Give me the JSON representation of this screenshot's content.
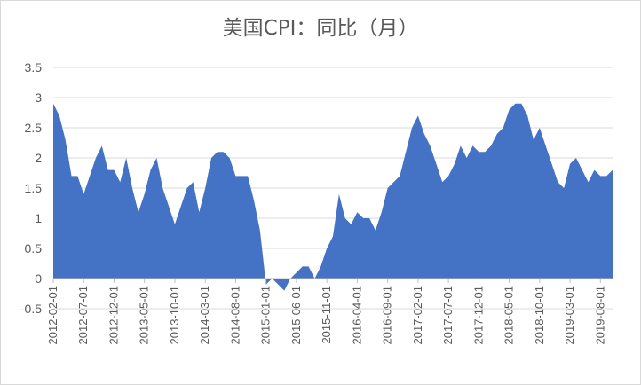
{
  "chart_data": {
    "type": "area",
    "title": "美国CPI：同比（月）",
    "xlabel": "",
    "ylabel": "",
    "ylim": [
      -0.5,
      3.5
    ],
    "yticks": [
      -0.5,
      0,
      0.5,
      1,
      1.5,
      2,
      2.5,
      3,
      3.5
    ],
    "ytick_labels": [
      "-0.5",
      "0",
      "0.5",
      "1",
      "1.5",
      "2",
      "2.5",
      "3",
      "3.5"
    ],
    "grid": true,
    "legend": "none",
    "x_start": "2012-02-01",
    "x_end": "2019-12-01",
    "x_ticks": [
      "2012-02-01",
      "2012-07-01",
      "2012-12-01",
      "2013-05-01",
      "2013-10-01",
      "2014-03-01",
      "2014-08-01",
      "2015-01-01",
      "2015-06-01",
      "2015-11-01",
      "2016-04-01",
      "2016-09-01",
      "2017-02-01",
      "2017-07-01",
      "2017-12-01",
      "2018-05-01",
      "2018-10-01",
      "2019-03-01",
      "2019-08-01"
    ],
    "color": "#4472c4",
    "series": [
      {
        "values": [
          2.9,
          2.7,
          2.3,
          1.7,
          1.7,
          1.4,
          1.7,
          2.0,
          2.2,
          1.8,
          1.8,
          1.6,
          2.0,
          1.5,
          1.1,
          1.4,
          1.8,
          2.0,
          1.5,
          1.2,
          0.9,
          1.2,
          1.5,
          1.6,
          1.1,
          1.5,
          2.0,
          2.1,
          2.1,
          2.0,
          1.7,
          1.7,
          1.7,
          1.3,
          0.8,
          -0.1,
          0.0,
          -0.1,
          -0.2,
          0.0,
          0.1,
          0.2,
          0.2,
          0.0,
          0.2,
          0.5,
          0.7,
          1.4,
          1.0,
          0.9,
          1.1,
          1.0,
          1.0,
          0.8,
          1.1,
          1.5,
          1.6,
          1.7,
          2.1,
          2.5,
          2.7,
          2.4,
          2.2,
          1.9,
          1.6,
          1.7,
          1.9,
          2.2,
          2.0,
          2.2,
          2.1,
          2.1,
          2.2,
          2.4,
          2.5,
          2.8,
          2.9,
          2.9,
          2.7,
          2.3,
          2.5,
          2.2,
          1.9,
          1.6,
          1.5,
          1.9,
          2.0,
          1.8,
          1.6,
          1.8,
          1.7,
          1.7,
          1.8
        ]
      }
    ]
  }
}
